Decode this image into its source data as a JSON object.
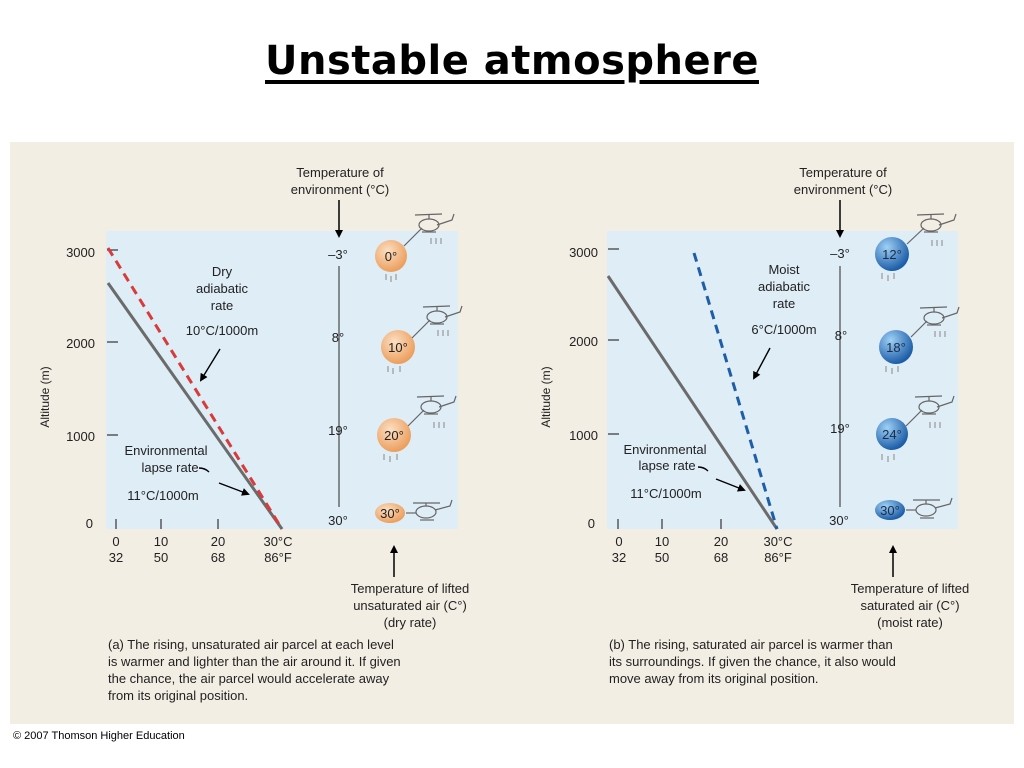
{
  "slide": {
    "title": "Unstable atmosphere",
    "copyright": "© 2007 Thomson Higher Education"
  },
  "colors": {
    "panel_bg": "#deedf6",
    "figure_bg": "#f2eee4",
    "environmental_line": "#6b6b6b",
    "dry_line": "#d93a3a",
    "moist_line": "#1e5ea8",
    "dry_parcel": "#f3bd88",
    "moist_parcel": "#3b86cf"
  },
  "panels": [
    {
      "id": "a",
      "env_header": [
        "Temperature of",
        "environment (°C)"
      ],
      "y_axis_label": "Altitude (m)",
      "y_ticks": [
        "3000",
        "2000",
        "1000",
        "0"
      ],
      "x_ticks_c": [
        "0",
        "10",
        "20",
        "30°C"
      ],
      "x_ticks_f": [
        "32",
        "50",
        "68",
        "86°F"
      ],
      "adiabatic_label": [
        "Dry",
        "adiabatic",
        "rate"
      ],
      "adiabatic_rate": "10°C/1000m",
      "env_rate_label": [
        "Environmental",
        "lapse rate"
      ],
      "env_rate": "11°C/1000m",
      "env_temps": [
        "–3°",
        "8°",
        "19°",
        "30°"
      ],
      "parcel_temps": [
        "0°",
        "10°",
        "20°",
        "30°"
      ],
      "bottom_label": [
        "Temperature of lifted",
        "unsaturated air (C°)",
        "(dry rate)"
      ],
      "caption": [
        "(a) The rising, unsaturated air parcel at each level",
        "is warmer and lighter than the air around it. If given",
        "the chance, the air parcel would accelerate away",
        "from its original position."
      ]
    },
    {
      "id": "b",
      "env_header": [
        "Temperature of",
        "environment (°C)"
      ],
      "y_axis_label": "Altitude (m)",
      "y_ticks": [
        "3000",
        "2000",
        "1000",
        "0"
      ],
      "x_ticks_c": [
        "0",
        "10",
        "20",
        "30°C"
      ],
      "x_ticks_f": [
        "32",
        "50",
        "68",
        "86°F"
      ],
      "adiabatic_label": [
        "Moist",
        "adiabatic",
        "rate"
      ],
      "adiabatic_rate": "6°C/1000m",
      "env_rate_label": [
        "Environmental",
        "lapse rate"
      ],
      "env_rate": "11°C/1000m",
      "env_temps": [
        "–3°",
        "8°",
        "19°",
        "30°"
      ],
      "parcel_temps": [
        "12°",
        "18°",
        "24°",
        "30°"
      ],
      "bottom_label": [
        "Temperature of lifted",
        "saturated air (C°)",
        "(moist rate)"
      ],
      "caption": [
        "(b) The rising, saturated air parcel is warmer than",
        "its surroundings. If given the chance, it also would",
        "move away from its original position."
      ]
    }
  ]
}
